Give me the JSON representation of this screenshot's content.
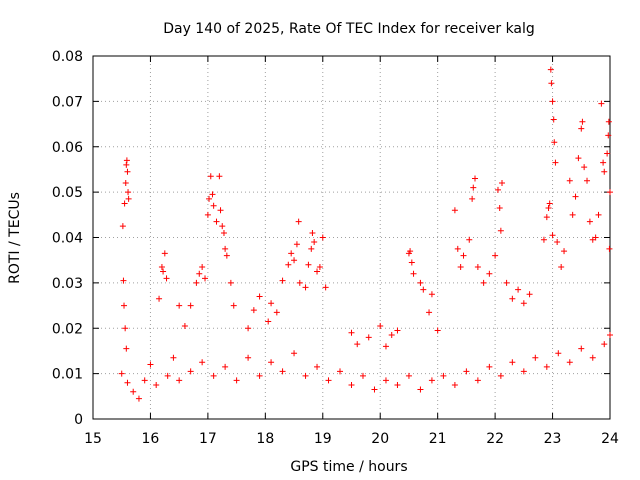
{
  "chart_data": {
    "type": "scatter",
    "title": "Day 140 of 2025, Rate Of TEC Index for receiver kalg",
    "xlabel": "GPS time / hours",
    "ylabel": "ROTI / TECUs",
    "xlim": [
      15,
      24
    ],
    "ylim": [
      0,
      0.08
    ],
    "xticks": [
      "15",
      "16",
      "17",
      "18",
      "19",
      "20",
      "21",
      "22",
      "23",
      "24"
    ],
    "yticks": [
      "0",
      "0.01",
      "0.02",
      "0.03",
      "0.04",
      "0.05",
      "0.06",
      "0.07",
      "0.08"
    ],
    "grid": true,
    "marker": "+",
    "color": "#ff0000",
    "series": [
      {
        "name": "ROTI",
        "points": [
          [
            15.52,
            0.0425
          ],
          [
            15.55,
            0.0475
          ],
          [
            15.57,
            0.052
          ],
          [
            15.58,
            0.056
          ],
          [
            15.59,
            0.057
          ],
          [
            15.6,
            0.0545
          ],
          [
            15.61,
            0.05
          ],
          [
            15.62,
            0.0485
          ],
          [
            15.53,
            0.0305
          ],
          [
            15.54,
            0.025
          ],
          [
            15.56,
            0.02
          ],
          [
            15.58,
            0.0155
          ],
          [
            16.15,
            0.0265
          ],
          [
            16.2,
            0.0335
          ],
          [
            16.22,
            0.0325
          ],
          [
            16.25,
            0.0365
          ],
          [
            16.28,
            0.031
          ],
          [
            16.5,
            0.025
          ],
          [
            16.6,
            0.0205
          ],
          [
            16.7,
            0.025
          ],
          [
            16.8,
            0.03
          ],
          [
            16.85,
            0.032
          ],
          [
            16.9,
            0.0335
          ],
          [
            16.95,
            0.031
          ],
          [
            17.0,
            0.045
          ],
          [
            17.02,
            0.0485
          ],
          [
            17.05,
            0.0535
          ],
          [
            17.08,
            0.0495
          ],
          [
            17.1,
            0.047
          ],
          [
            17.15,
            0.0435
          ],
          [
            17.2,
            0.0535
          ],
          [
            17.22,
            0.046
          ],
          [
            17.25,
            0.0425
          ],
          [
            17.28,
            0.041
          ],
          [
            17.3,
            0.0375
          ],
          [
            17.33,
            0.036
          ],
          [
            17.4,
            0.03
          ],
          [
            17.45,
            0.025
          ],
          [
            17.7,
            0.02
          ],
          [
            17.8,
            0.024
          ],
          [
            17.9,
            0.027
          ],
          [
            18.05,
            0.0215
          ],
          [
            18.1,
            0.0255
          ],
          [
            18.2,
            0.0235
          ],
          [
            18.3,
            0.0305
          ],
          [
            18.4,
            0.034
          ],
          [
            18.45,
            0.0365
          ],
          [
            18.5,
            0.035
          ],
          [
            18.55,
            0.0385
          ],
          [
            18.58,
            0.0435
          ],
          [
            18.6,
            0.03
          ],
          [
            18.7,
            0.029
          ],
          [
            18.75,
            0.034
          ],
          [
            18.8,
            0.0375
          ],
          [
            18.82,
            0.041
          ],
          [
            18.85,
            0.039
          ],
          [
            18.9,
            0.0325
          ],
          [
            18.95,
            0.0335
          ],
          [
            19.0,
            0.04
          ],
          [
            19.05,
            0.029
          ],
          [
            19.5,
            0.019
          ],
          [
            19.6,
            0.0165
          ],
          [
            19.8,
            0.018
          ],
          [
            20.0,
            0.0205
          ],
          [
            20.1,
            0.016
          ],
          [
            20.2,
            0.0185
          ],
          [
            20.3,
            0.0195
          ],
          [
            20.5,
            0.0365
          ],
          [
            20.52,
            0.037
          ],
          [
            20.55,
            0.0345
          ],
          [
            20.58,
            0.032
          ],
          [
            20.7,
            0.03
          ],
          [
            20.75,
            0.0285
          ],
          [
            20.85,
            0.0235
          ],
          [
            20.9,
            0.0275
          ],
          [
            21.0,
            0.0195
          ],
          [
            21.3,
            0.046
          ],
          [
            21.35,
            0.0375
          ],
          [
            21.4,
            0.0335
          ],
          [
            21.45,
            0.036
          ],
          [
            21.55,
            0.0395
          ],
          [
            21.6,
            0.0485
          ],
          [
            21.62,
            0.051
          ],
          [
            21.65,
            0.053
          ],
          [
            21.7,
            0.0335
          ],
          [
            21.8,
            0.03
          ],
          [
            21.9,
            0.032
          ],
          [
            22.0,
            0.036
          ],
          [
            22.05,
            0.0505
          ],
          [
            22.08,
            0.0465
          ],
          [
            22.1,
            0.0415
          ],
          [
            22.12,
            0.052
          ],
          [
            22.2,
            0.03
          ],
          [
            22.3,
            0.0265
          ],
          [
            22.4,
            0.0285
          ],
          [
            22.5,
            0.0255
          ],
          [
            22.6,
            0.0275
          ],
          [
            22.85,
            0.0395
          ],
          [
            22.9,
            0.0445
          ],
          [
            22.93,
            0.0465
          ],
          [
            22.95,
            0.0475
          ],
          [
            22.97,
            0.077
          ],
          [
            22.98,
            0.074
          ],
          [
            23.0,
            0.07
          ],
          [
            23.02,
            0.066
          ],
          [
            23.03,
            0.061
          ],
          [
            23.05,
            0.0565
          ],
          [
            23.0,
            0.0405
          ],
          [
            23.08,
            0.039
          ],
          [
            23.15,
            0.0335
          ],
          [
            23.2,
            0.037
          ],
          [
            23.3,
            0.0525
          ],
          [
            23.35,
            0.045
          ],
          [
            23.4,
            0.049
          ],
          [
            23.45,
            0.0575
          ],
          [
            23.5,
            0.064
          ],
          [
            23.52,
            0.0655
          ],
          [
            23.55,
            0.0555
          ],
          [
            23.6,
            0.0525
          ],
          [
            23.65,
            0.0435
          ],
          [
            23.7,
            0.0395
          ],
          [
            23.75,
            0.04
          ],
          [
            23.8,
            0.045
          ],
          [
            23.85,
            0.0695
          ],
          [
            23.88,
            0.0565
          ],
          [
            23.9,
            0.0545
          ],
          [
            23.95,
            0.0585
          ],
          [
            23.97,
            0.0625
          ],
          [
            23.98,
            0.0655
          ],
          [
            24.0,
            0.05
          ],
          [
            23.99,
            0.0375
          ],
          [
            15.5,
            0.01
          ],
          [
            15.6,
            0.008
          ],
          [
            15.7,
            0.006
          ],
          [
            15.8,
            0.0045
          ],
          [
            15.9,
            0.0085
          ],
          [
            16.0,
            0.012
          ],
          [
            16.1,
            0.0075
          ],
          [
            16.3,
            0.0095
          ],
          [
            16.4,
            0.0135
          ],
          [
            16.5,
            0.0085
          ],
          [
            16.7,
            0.0105
          ],
          [
            16.9,
            0.0125
          ],
          [
            17.1,
            0.0095
          ],
          [
            17.3,
            0.0115
          ],
          [
            17.5,
            0.0085
          ],
          [
            17.7,
            0.0135
          ],
          [
            17.9,
            0.0095
          ],
          [
            18.1,
            0.0125
          ],
          [
            18.3,
            0.0105
          ],
          [
            18.5,
            0.0145
          ],
          [
            18.7,
            0.0095
          ],
          [
            18.9,
            0.0115
          ],
          [
            19.1,
            0.0085
          ],
          [
            19.3,
            0.0105
          ],
          [
            19.5,
            0.0075
          ],
          [
            19.7,
            0.0095
          ],
          [
            19.9,
            0.0065
          ],
          [
            20.1,
            0.0085
          ],
          [
            20.3,
            0.0075
          ],
          [
            20.5,
            0.0095
          ],
          [
            20.7,
            0.0065
          ],
          [
            20.9,
            0.0085
          ],
          [
            21.1,
            0.0095
          ],
          [
            21.3,
            0.0075
          ],
          [
            21.5,
            0.0105
          ],
          [
            21.7,
            0.0085
          ],
          [
            21.9,
            0.0115
          ],
          [
            22.1,
            0.0095
          ],
          [
            22.3,
            0.0125
          ],
          [
            22.5,
            0.0105
          ],
          [
            22.7,
            0.0135
          ],
          [
            22.9,
            0.0115
          ],
          [
            23.1,
            0.0145
          ],
          [
            23.3,
            0.0125
          ],
          [
            23.5,
            0.0155
          ],
          [
            23.7,
            0.0135
          ],
          [
            23.9,
            0.0165
          ],
          [
            24.0,
            0.0185
          ]
        ]
      }
    ]
  }
}
